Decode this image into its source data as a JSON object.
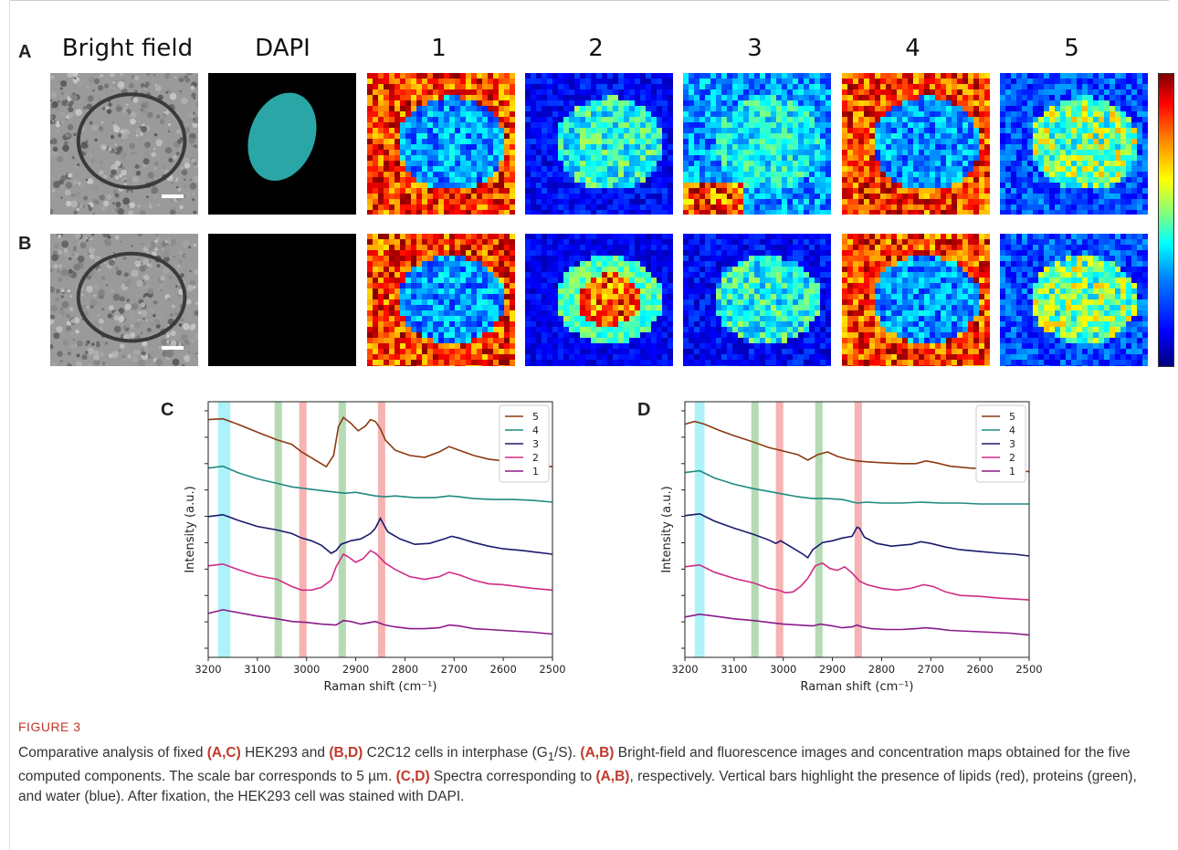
{
  "figure": {
    "panel_letters": {
      "A": "A",
      "B": "B",
      "C": "C",
      "D": "D"
    },
    "column_headers": [
      "Bright field",
      "DAPI",
      "1",
      "2",
      "3",
      "4",
      "5"
    ],
    "caption_label": "FIGURE 3",
    "caption_parts": [
      {
        "t": "Comparative analysis of fixed ",
        "b": false
      },
      {
        "t": "(A,C)",
        "b": true
      },
      {
        "t": " HEK293 and ",
        "b": false
      },
      {
        "t": "(B,D)",
        "b": true
      },
      {
        "t": " C2C12 cells in interphase (G",
        "b": false
      },
      {
        "t": "1",
        "b": false,
        "sub": true
      },
      {
        "t": "/S). ",
        "b": false
      },
      {
        "t": "(A,B)",
        "b": true
      },
      {
        "t": " Bright-field and fluorescence images and concentration maps obtained for the five computed components. The scale bar corresponds to 5 µm. ",
        "b": false
      },
      {
        "t": "(C,D)",
        "b": true
      },
      {
        "t": " Spectra corresponding to ",
        "b": false
      },
      {
        "t": "(A,B)",
        "b": true
      },
      {
        "t": ", respectively. Vertical bars highlight the presence of lipids (red), proteins (green), and water (blue). After fixation, the HEK293 cell was stained with DAPI.",
        "b": false
      }
    ]
  },
  "colors": {
    "c5": "#8b3a12",
    "c4": "#1f8a80",
    "c3": "#1a1a6e",
    "c2": "#d02c86",
    "c1": "#8a1a8a",
    "lipid_band": "#f4a6a6",
    "protein_band": "#a8d5a8",
    "water_band": "#9ff0f7"
  },
  "chart_data": [
    {
      "type": "line",
      "panel": "C",
      "xlabel": "Raman shift (cm⁻¹)",
      "ylabel": "Intensity (a.u.)",
      "xlim": [
        3200,
        2500
      ],
      "xticks": [
        3200,
        3100,
        3000,
        2900,
        2800,
        2700,
        2600,
        2500
      ],
      "legend": [
        "5",
        "4",
        "3",
        "2",
        "1"
      ],
      "legend_position": "top-right",
      "bands": [
        {
          "kind": "water",
          "from": 3180,
          "to": 3155
        },
        {
          "kind": "protein",
          "from": 3065,
          "to": 3050
        },
        {
          "kind": "lipid",
          "from": 3015,
          "to": 3000
        },
        {
          "kind": "protein",
          "from": 2935,
          "to": 2920
        },
        {
          "kind": "lipid",
          "from": 2855,
          "to": 2840
        }
      ],
      "series": [
        {
          "name": "5",
          "x": [
            3200,
            3170,
            3140,
            3100,
            3060,
            3030,
            3010,
            2990,
            2960,
            2945,
            2935,
            2925,
            2910,
            2895,
            2880,
            2870,
            2860,
            2850,
            2840,
            2820,
            2790,
            2760,
            2730,
            2710,
            2690,
            2660,
            2630,
            2600,
            2570,
            2540,
            2500
          ],
          "y": [
            4.5,
            4.52,
            4.4,
            4.22,
            4.05,
            3.95,
            3.78,
            3.65,
            3.45,
            3.7,
            4.35,
            4.55,
            4.42,
            4.25,
            4.36,
            4.5,
            4.46,
            4.3,
            4.05,
            3.82,
            3.7,
            3.66,
            3.78,
            3.9,
            3.82,
            3.7,
            3.62,
            3.58,
            3.54,
            3.5,
            3.45
          ]
        },
        {
          "name": "4",
          "x": [
            3200,
            3170,
            3140,
            3100,
            3060,
            3030,
            3000,
            2970,
            2940,
            2920,
            2900,
            2880,
            2860,
            2840,
            2820,
            2780,
            2740,
            2710,
            2690,
            2660,
            2620,
            2580,
            2540,
            2500
          ],
          "y": [
            3.42,
            3.46,
            3.32,
            3.18,
            3.08,
            3.0,
            2.96,
            2.92,
            2.88,
            2.86,
            2.88,
            2.84,
            2.8,
            2.78,
            2.8,
            2.76,
            2.76,
            2.8,
            2.78,
            2.74,
            2.72,
            2.72,
            2.7,
            2.66
          ]
        },
        {
          "name": "3",
          "x": [
            3200,
            3170,
            3140,
            3100,
            3060,
            3030,
            3010,
            2990,
            2970,
            2950,
            2940,
            2930,
            2910,
            2890,
            2870,
            2860,
            2850,
            2845,
            2835,
            2810,
            2780,
            2750,
            2720,
            2705,
            2690,
            2660,
            2630,
            2600,
            2560,
            2530,
            2500
          ],
          "y": [
            2.34,
            2.38,
            2.26,
            2.12,
            2.04,
            1.96,
            1.86,
            1.8,
            1.7,
            1.52,
            1.58,
            1.72,
            1.8,
            1.84,
            1.96,
            2.08,
            2.3,
            2.2,
            2.0,
            1.84,
            1.72,
            1.74,
            1.84,
            1.9,
            1.86,
            1.76,
            1.68,
            1.62,
            1.58,
            1.54,
            1.5
          ]
        },
        {
          "name": "2",
          "x": [
            3200,
            3170,
            3140,
            3100,
            3060,
            3030,
            3010,
            2990,
            2970,
            2950,
            2940,
            2925,
            2915,
            2900,
            2885,
            2870,
            2860,
            2850,
            2840,
            2820,
            2790,
            2760,
            2730,
            2710,
            2690,
            2660,
            2630,
            2600,
            2570,
            2540,
            2500
          ],
          "y": [
            1.24,
            1.28,
            1.16,
            1.02,
            0.94,
            0.78,
            0.7,
            0.7,
            0.76,
            0.92,
            1.22,
            1.5,
            1.44,
            1.32,
            1.4,
            1.58,
            1.52,
            1.42,
            1.3,
            1.16,
            1.0,
            0.94,
            1.0,
            1.1,
            1.04,
            0.92,
            0.84,
            0.82,
            0.78,
            0.74,
            0.7
          ]
        },
        {
          "name": "1",
          "x": [
            3200,
            3170,
            3140,
            3100,
            3060,
            3030,
            3000,
            2970,
            2940,
            2925,
            2910,
            2890,
            2870,
            2860,
            2850,
            2840,
            2820,
            2790,
            2760,
            2730,
            2710,
            2690,
            2660,
            2630,
            2600,
            2570,
            2540,
            2500
          ],
          "y": [
            0.18,
            0.26,
            0.2,
            0.12,
            0.06,
            0.0,
            -0.02,
            -0.06,
            -0.08,
            0.02,
            0.0,
            -0.06,
            -0.02,
            0.0,
            -0.04,
            -0.08,
            -0.12,
            -0.16,
            -0.16,
            -0.14,
            -0.08,
            -0.1,
            -0.16,
            -0.18,
            -0.2,
            -0.22,
            -0.24,
            -0.28
          ]
        }
      ]
    },
    {
      "type": "line",
      "panel": "D",
      "xlabel": "Raman shift (cm⁻¹)",
      "ylabel": "Intensity (a.u.)",
      "xlim": [
        3200,
        2500
      ],
      "xticks": [
        3200,
        3100,
        3000,
        2900,
        2800,
        2700,
        2600,
        2500
      ],
      "legend": [
        "5",
        "4",
        "3",
        "2",
        "1"
      ],
      "legend_position": "top-right",
      "bands": [
        {
          "kind": "water",
          "from": 3180,
          "to": 3160
        },
        {
          "kind": "protein",
          "from": 3065,
          "to": 3050
        },
        {
          "kind": "lipid",
          "from": 3015,
          "to": 3000
        },
        {
          "kind": "protein",
          "from": 2935,
          "to": 2920
        },
        {
          "kind": "lipid",
          "from": 2855,
          "to": 2840
        }
      ],
      "series": [
        {
          "name": "5",
          "x": [
            3200,
            3180,
            3160,
            3130,
            3100,
            3060,
            3030,
            3000,
            2970,
            2950,
            2930,
            2910,
            2890,
            2870,
            2850,
            2830,
            2800,
            2760,
            2730,
            2710,
            2690,
            2660,
            2620,
            2580,
            2540,
            2500
          ],
          "y": [
            4.4,
            4.46,
            4.4,
            4.26,
            4.14,
            4.0,
            3.88,
            3.8,
            3.72,
            3.6,
            3.72,
            3.78,
            3.68,
            3.62,
            3.58,
            3.56,
            3.54,
            3.52,
            3.52,
            3.58,
            3.54,
            3.46,
            3.42,
            3.4,
            3.38,
            3.34
          ]
        },
        {
          "name": "4",
          "x": [
            3200,
            3170,
            3140,
            3100,
            3060,
            3030,
            3000,
            2970,
            2940,
            2910,
            2880,
            2850,
            2830,
            2800,
            2760,
            2720,
            2680,
            2640,
            2600,
            2560,
            2530,
            2500
          ],
          "y": [
            3.32,
            3.36,
            3.2,
            3.06,
            2.96,
            2.9,
            2.84,
            2.78,
            2.74,
            2.74,
            2.72,
            2.64,
            2.66,
            2.64,
            2.64,
            2.66,
            2.64,
            2.64,
            2.62,
            2.62,
            2.62,
            2.62
          ]
        },
        {
          "name": "3",
          "x": [
            3200,
            3170,
            3140,
            3100,
            3060,
            3030,
            3015,
            3005,
            2990,
            2975,
            2960,
            2950,
            2940,
            2920,
            2900,
            2880,
            2860,
            2850,
            2845,
            2835,
            2810,
            2780,
            2740,
            2720,
            2700,
            2670,
            2640,
            2600,
            2560,
            2530,
            2500
          ],
          "y": [
            2.36,
            2.4,
            2.24,
            2.08,
            1.94,
            1.82,
            1.74,
            1.8,
            1.7,
            1.6,
            1.5,
            1.42,
            1.6,
            1.76,
            1.8,
            1.86,
            1.9,
            2.1,
            2.08,
            1.88,
            1.74,
            1.68,
            1.72,
            1.78,
            1.74,
            1.66,
            1.6,
            1.56,
            1.52,
            1.5,
            1.46
          ]
        },
        {
          "name": "2",
          "x": [
            3200,
            3170,
            3140,
            3100,
            3060,
            3030,
            3010,
            2995,
            2980,
            2965,
            2950,
            2935,
            2920,
            2905,
            2890,
            2875,
            2860,
            2845,
            2830,
            2800,
            2770,
            2740,
            2715,
            2695,
            2670,
            2640,
            2600,
            2560,
            2530,
            2500
          ],
          "y": [
            1.22,
            1.26,
            1.1,
            0.96,
            0.86,
            0.74,
            0.7,
            0.64,
            0.66,
            0.78,
            0.96,
            1.24,
            1.3,
            1.18,
            1.14,
            1.22,
            1.08,
            0.9,
            0.82,
            0.74,
            0.7,
            0.74,
            0.82,
            0.78,
            0.66,
            0.58,
            0.56,
            0.52,
            0.5,
            0.48
          ]
        },
        {
          "name": "1",
          "x": [
            3200,
            3170,
            3140,
            3100,
            3060,
            3030,
            3000,
            2970,
            2940,
            2925,
            2900,
            2880,
            2860,
            2850,
            2840,
            2820,
            2790,
            2760,
            2730,
            2710,
            2690,
            2660,
            2620,
            2580,
            2540,
            2500
          ],
          "y": [
            0.1,
            0.16,
            0.12,
            0.06,
            0.02,
            -0.02,
            -0.06,
            -0.08,
            -0.1,
            -0.06,
            -0.1,
            -0.14,
            -0.12,
            -0.08,
            -0.12,
            -0.16,
            -0.18,
            -0.18,
            -0.16,
            -0.14,
            -0.16,
            -0.2,
            -0.22,
            -0.24,
            -0.26,
            -0.3
          ]
        }
      ]
    }
  ],
  "micrographs": [
    {
      "id": "A-bf",
      "row": "A",
      "kind": "brightfield",
      "scale_bar": true
    },
    {
      "id": "A-dapi",
      "row": "A",
      "kind": "dapi"
    },
    {
      "id": "A-1",
      "row": "A",
      "kind": "map",
      "dominant": "high-bg"
    },
    {
      "id": "A-2",
      "row": "A",
      "kind": "map",
      "dominant": "low"
    },
    {
      "id": "A-3",
      "row": "A",
      "kind": "map",
      "dominant": "mid"
    },
    {
      "id": "A-4",
      "row": "A",
      "kind": "map",
      "dominant": "high-bg"
    },
    {
      "id": "A-5",
      "row": "A",
      "kind": "map",
      "dominant": "low-spots"
    },
    {
      "id": "B-bf",
      "row": "B",
      "kind": "brightfield",
      "scale_bar": true
    },
    {
      "id": "B-dapi",
      "row": "B",
      "kind": "empty"
    },
    {
      "id": "B-1",
      "row": "B",
      "kind": "map",
      "dominant": "high-bg"
    },
    {
      "id": "B-2",
      "row": "B",
      "kind": "map",
      "dominant": "low-center-hot"
    },
    {
      "id": "B-3",
      "row": "B",
      "kind": "map",
      "dominant": "low"
    },
    {
      "id": "B-4",
      "row": "B",
      "kind": "map",
      "dominant": "high-bg"
    },
    {
      "id": "B-5",
      "row": "B",
      "kind": "map",
      "dominant": "low-spots"
    }
  ]
}
